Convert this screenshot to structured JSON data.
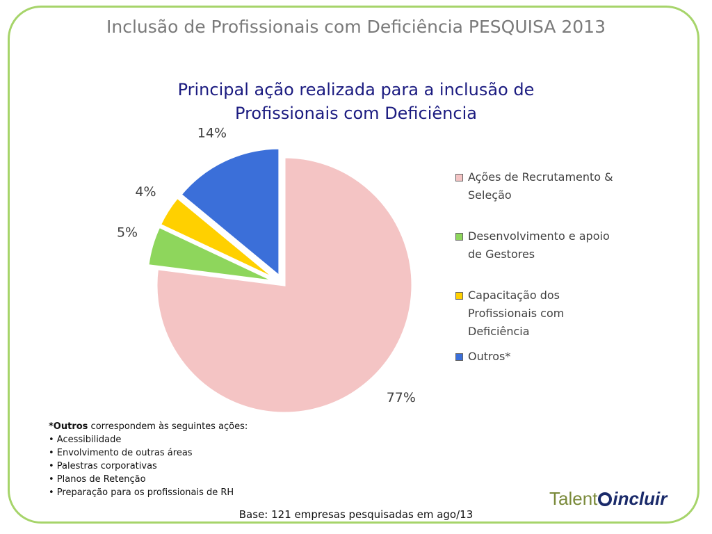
{
  "header": {
    "title": "Inclusão de Profissionais com Deficiência PESQUISA 2013"
  },
  "chart_data": {
    "type": "pie",
    "title": "Principal ação realizada para a inclusão de Profissionais com Deficiência",
    "categories": [
      "Ações de Recrutamento & Seleção",
      "Desenvolvimento e apoio de Gestores",
      "Capacitação dos Profissionais com Deficiência",
      "Outros*"
    ],
    "values": [
      77,
      5,
      4,
      14
    ],
    "value_labels": [
      "77%",
      "5%",
      "4%",
      "14%"
    ],
    "colors": [
      "#f4c4c4",
      "#8ed65c",
      "#ffd000",
      "#3b6fd9"
    ],
    "legend": "right"
  },
  "footnote": {
    "lead": "*Outros",
    "text": "correspondem às seguintes ações:",
    "items": [
      "• Acessibilidade",
      "• Envolvimento de outras áreas",
      "• Palestras corporativas",
      "• Planos de Retenção",
      "• Preparação para os profissionais de RH"
    ]
  },
  "base": "Base: 121 empresas pesquisadas em ago/13",
  "logo": {
    "part1": "Talent",
    "part2": "incluir"
  }
}
